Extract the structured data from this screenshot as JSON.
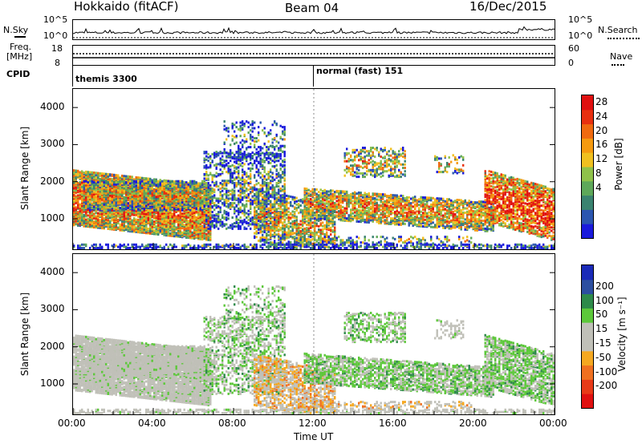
{
  "header": {
    "site": "Hokkaido (fitACF)",
    "beam": "Beam 04",
    "date": "16/Dec/2015"
  },
  "noise_panel": {
    "left_label": "N.Sky",
    "right_label": "N.Search",
    "left_ticks": [
      "10^5",
      "10^0"
    ],
    "right_ticks": [
      "10^5",
      "10^0"
    ]
  },
  "freq_panel": {
    "left_label_1": "Freq.",
    "left_label_2": "[MHz]",
    "left_ticks": [
      "18",
      "8"
    ],
    "right_label": "Nave",
    "right_ticks": [
      "60",
      "0"
    ]
  },
  "cpid": {
    "label": "CPID",
    "segments": [
      {
        "name": "themis 3300",
        "start_hour": 0
      },
      {
        "name": "normal (fast) 151",
        "start_hour": 12
      }
    ]
  },
  "chart_data": [
    {
      "type": "heatmap",
      "parameter": "Power",
      "ylabel": "Slant Range [km]",
      "yticks": [
        1000,
        2000,
        3000,
        4000
      ],
      "ylim": [
        180,
        4500
      ],
      "xlim": [
        0,
        24
      ],
      "colorbar": {
        "label": "Power [dB]",
        "tick_labels": [
          "28",
          "24",
          "20",
          "16",
          "12",
          "8",
          "4"
        ],
        "colors": [
          "#1a1adc",
          "#2b56b0",
          "#3a8370",
          "#5ea85a",
          "#8fc24a",
          "#f0c020",
          "#f59a10",
          "#f06a10",
          "#e83010",
          "#e01010"
        ]
      }
    },
    {
      "type": "heatmap",
      "parameter": "Velocity",
      "ylabel": "Slant Range [km]",
      "yticks": [
        1000,
        2000,
        3000,
        4000
      ],
      "ylim": [
        180,
        4500
      ],
      "xlim": [
        0,
        24
      ],
      "xlabel": "Time UT",
      "xtick_labels": [
        "00:00",
        "04:00",
        "08:00",
        "12:00",
        "16:00",
        "20:00",
        "00:00"
      ],
      "colorbar": {
        "label": "Velocity [m s⁻¹]",
        "tick_labels": [
          "200",
          "100",
          "50",
          "15",
          "-15",
          "-50",
          "-100",
          "-200"
        ],
        "colors": [
          "#1a2ab8",
          "#2c4fa0",
          "#2e8a4a",
          "#5cc83a",
          "#c0c0b8",
          "#c0c0b8",
          "#f5a820",
          "#f07020",
          "#e83a18",
          "#e01010"
        ]
      }
    }
  ]
}
